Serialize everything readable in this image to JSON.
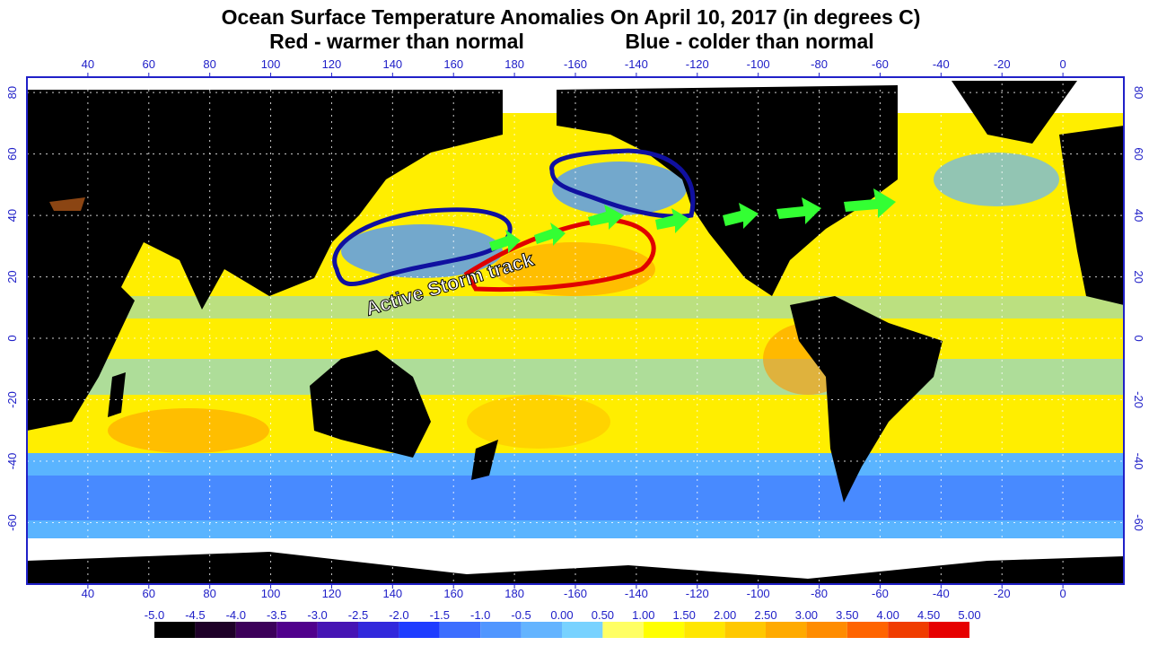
{
  "title": "Ocean Surface Temperature Anomalies On April 10, 2017 (in degrees C)",
  "subtitle_left": "Red - warmer than normal",
  "subtitle_right": "Blue - colder than normal",
  "annotation": "Active Storm track",
  "map": {
    "xlim": [
      20,
      380
    ],
    "ylim": [
      -80,
      85
    ],
    "xticks": [
      40,
      60,
      80,
      100,
      120,
      140,
      160,
      180,
      -160,
      -140,
      -120,
      -100,
      -80,
      -60,
      -40,
      -20,
      0
    ],
    "yticks": [
      80,
      60,
      40,
      20,
      0,
      -20,
      -40,
      -60
    ],
    "grid": true
  },
  "colorbar": {
    "ticks": [
      {
        "value": -5,
        "label": "-5.0"
      },
      {
        "value": -4.5,
        "label": "-4.5"
      },
      {
        "value": -4,
        "label": "-4.0"
      },
      {
        "value": -3.5,
        "label": "-3.5"
      },
      {
        "value": -3,
        "label": "-3.0"
      },
      {
        "value": -2.5,
        "label": "-2.5"
      },
      {
        "value": -2,
        "label": "-2.0"
      },
      {
        "value": -1.5,
        "label": "-1.5"
      },
      {
        "value": -1,
        "label": "-1.0"
      },
      {
        "value": -0.5,
        "label": "-0.5"
      },
      {
        "value": 0,
        "label": "0.00"
      },
      {
        "value": 0.5,
        "label": "0.50"
      },
      {
        "value": 1,
        "label": "1.00"
      },
      {
        "value": 1.5,
        "label": "1.50"
      },
      {
        "value": 2,
        "label": "2.00"
      },
      {
        "value": 2.5,
        "label": "2.50"
      },
      {
        "value": 3,
        "label": "3.00"
      },
      {
        "value": 3.5,
        "label": "3.50"
      },
      {
        "value": 4,
        "label": "4.00"
      },
      {
        "value": 4.5,
        "label": "4.50"
      },
      {
        "value": 5,
        "label": "5.00"
      }
    ],
    "colors": [
      "#000000",
      "#1e0028",
      "#3c005a",
      "#50008c",
      "#4614b4",
      "#3228dc",
      "#1e3cff",
      "#3c6eff",
      "#5096ff",
      "#64b4ff",
      "#78d2ff",
      "#ffff64",
      "#ffff00",
      "#ffe600",
      "#ffc800",
      "#ffaa00",
      "#ff8c00",
      "#ff6400",
      "#f03c00",
      "#e60000"
    ]
  }
}
